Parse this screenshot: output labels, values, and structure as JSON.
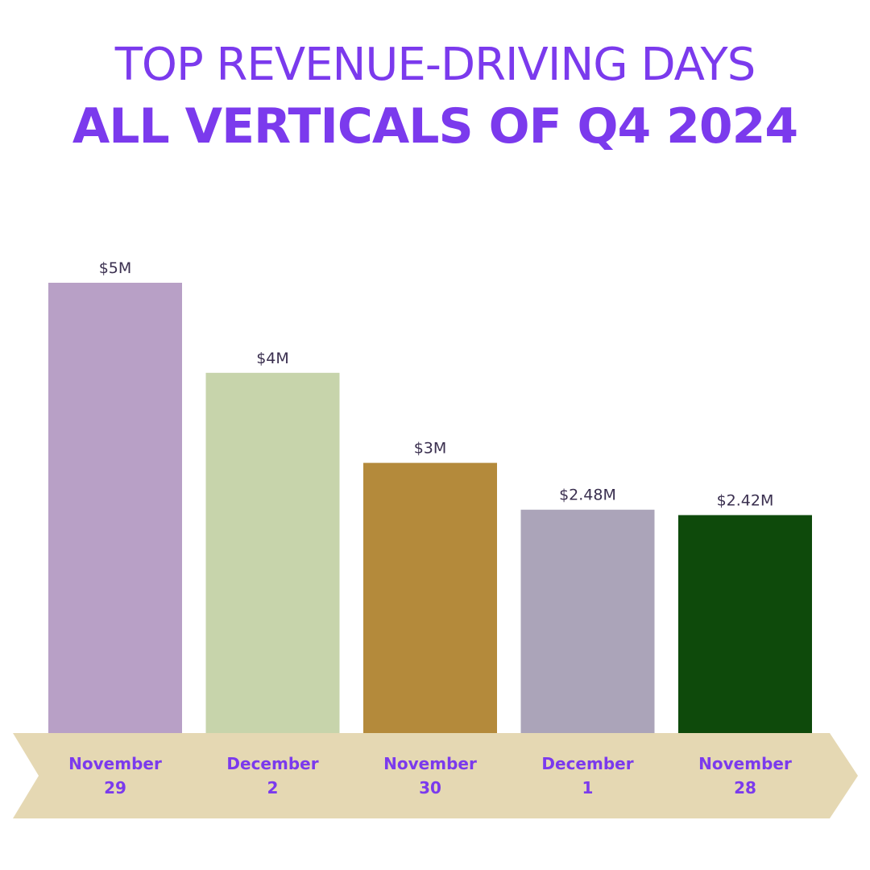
{
  "title": {
    "line1": "TOP REVENUE-DRIVING DAYS",
    "line2": "ALL VERTICALS OF Q4 2024"
  },
  "chart_data": {
    "type": "bar",
    "categories": [
      [
        "November",
        "29"
      ],
      [
        "December",
        "2"
      ],
      [
        "November",
        "30"
      ],
      [
        "December",
        "1"
      ],
      [
        "November",
        "28"
      ]
    ],
    "values": [
      5.0,
      4.0,
      3.0,
      2.48,
      2.42
    ],
    "value_labels": [
      "$5M",
      "$4M",
      "$3M",
      "$2.48M",
      "$2.42M"
    ],
    "colors": [
      "#b8a0c6",
      "#c7d4ab",
      "#b48a3b",
      "#aba4b9",
      "#0e4a0b"
    ],
    "ylim": [
      0,
      5
    ],
    "grid": false,
    "axis_band_color": "#e5d8b3",
    "title_color": "#7b3aed",
    "category_label_color": "#7b3aed",
    "value_label_color": "#3a2f4f"
  }
}
